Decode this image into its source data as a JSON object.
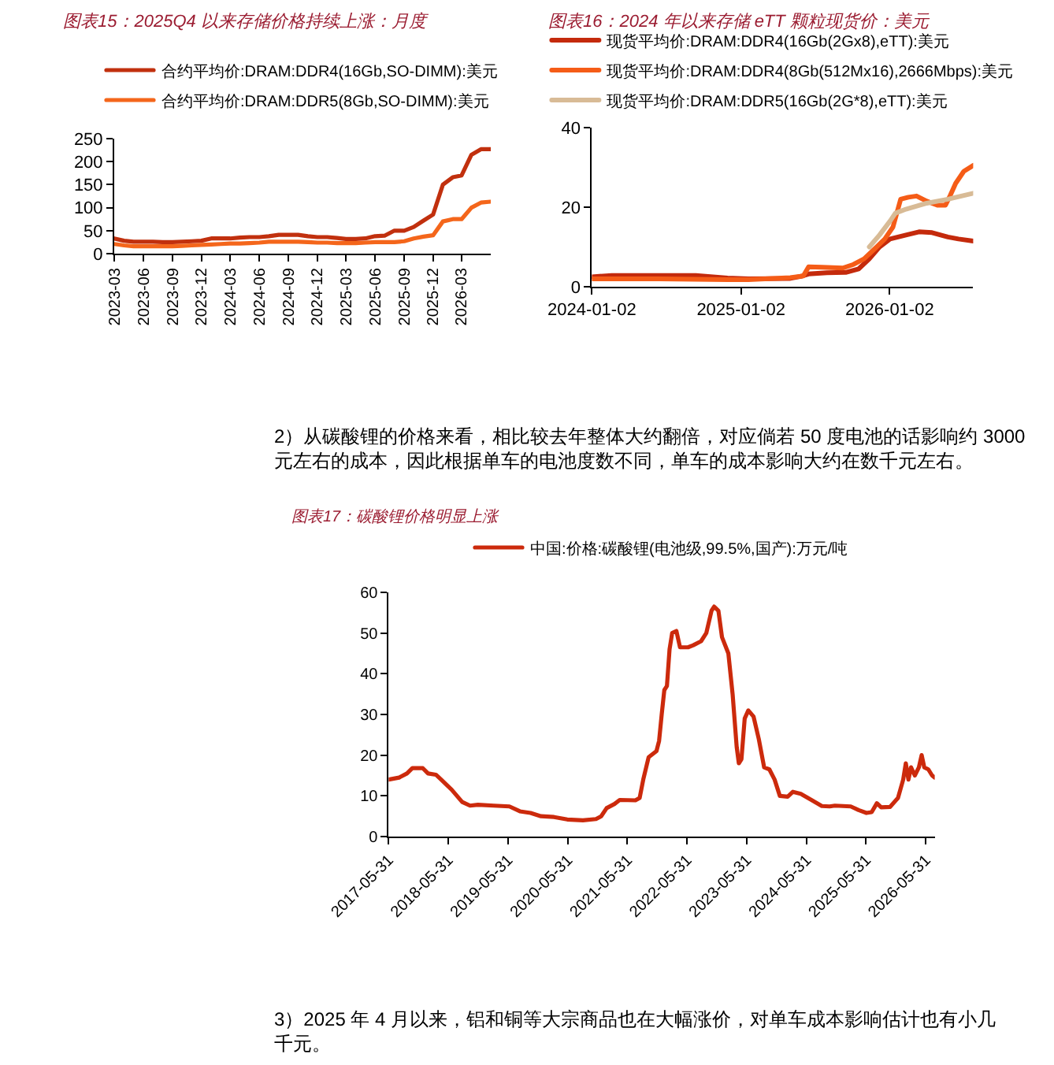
{
  "chart_data": [
    {
      "type": "line",
      "title": "图表15：2025Q4 以来存储价格持续上涨：月度",
      "legend": "top",
      "x": [
        "2023-03",
        "2023-04",
        "2023-05",
        "2023-06",
        "2023-07",
        "2023-08",
        "2023-09",
        "2023-10",
        "2023-11",
        "2023-12",
        "2024-01",
        "2024-02",
        "2024-03",
        "2024-04",
        "2024-05",
        "2024-06",
        "2024-07",
        "2024-08",
        "2024-09",
        "2024-10",
        "2024-11",
        "2024-12",
        "2025-01",
        "2025-02",
        "2025-03",
        "2025-04",
        "2025-05",
        "2025-06",
        "2025-07",
        "2025-08",
        "2025-09",
        "2025-10",
        "2025-11",
        "2025-12",
        "2026-01",
        "2026-02",
        "2026-03",
        "2026-04",
        "2026-05",
        "2026-06"
      ],
      "series": [
        {
          "name": "合约平均价:DRAM:DDR4(16Gb,SO-DIMM):美元",
          "color": "#c1300e",
          "values": [
            33,
            28,
            26,
            26,
            26,
            25,
            25,
            26,
            27,
            28,
            33,
            33,
            33,
            35,
            36,
            36,
            38,
            41,
            41,
            41,
            38,
            36,
            36,
            34,
            32,
            32,
            33,
            38,
            39,
            50,
            50,
            58,
            72,
            85,
            150,
            166,
            170,
            215,
            227,
            227
          ]
        },
        {
          "name": "合约平均价:DRAM:DDR5(8Gb,SO-DIMM):美元",
          "color": "#f4661b",
          "values": [
            21,
            18,
            16,
            16,
            16,
            16,
            16,
            17,
            18,
            19,
            20,
            21,
            22,
            22,
            23,
            24,
            26,
            26,
            26,
            26,
            25,
            24,
            24,
            23,
            23,
            23,
            24,
            25,
            25,
            25,
            27,
            33,
            37,
            40,
            70,
            75,
            75,
            100,
            111,
            113
          ]
        }
      ],
      "xlim": [
        "2023-03",
        "2026-06"
      ],
      "xticks": [
        "2023-03",
        "2023-06",
        "2023-09",
        "2023-12",
        "2024-03",
        "2024-06",
        "2024-09",
        "2024-12",
        "2025-03",
        "2025-06",
        "2025-09",
        "2025-12",
        "2026-03"
      ],
      "ylim": [
        0,
        250
      ],
      "yticks": [
        0,
        50,
        100,
        150,
        200,
        250
      ]
    },
    {
      "type": "line",
      "title": "图表16：2024 年以来存储 eTT 颗粒现货价：美元",
      "legend": "top",
      "series": [
        {
          "name": "现货平均价:DRAM:DDR4(16Gb(2Gx8),eTT):美元",
          "color": "#c42a0c",
          "x": [
            "2024-01-02",
            "2024-02-20",
            "2024-09-13",
            "2024-11-30",
            "2025-01-20",
            "2025-05-03",
            "2025-05-29",
            "2025-06-17",
            "2025-08-01",
            "2025-09-16",
            "2025-10-18",
            "2025-11-13",
            "2025-12-08",
            "2026-01-03",
            "2026-02-11",
            "2026-03-15",
            "2026-04-16",
            "2026-05-25",
            "2026-06-20",
            "2026-07-26"
          ],
          "values": [
            2.5,
            2.8,
            2.8,
            2.2,
            2.0,
            2.1,
            2.6,
            3.2,
            3.5,
            3.6,
            4.5,
            7.0,
            10,
            12,
            13,
            13.8,
            13.6,
            12.5,
            12,
            11.5
          ]
        },
        {
          "name": "现货平均价:DRAM:DDR4(8Gb(512Mx16),2666Mbps):美元",
          "color": "#f55c17",
          "x": [
            "2024-01-02",
            "2024-06-15",
            "2024-11-30",
            "2025-01-20",
            "2025-05-03",
            "2025-06-04",
            "2025-06-17",
            "2025-07-20",
            "2025-09-09",
            "2025-10-05",
            "2025-10-31",
            "2025-11-26",
            "2025-12-21",
            "2026-01-10",
            "2026-01-29",
            "2026-02-17",
            "2026-03-09",
            "2026-04-03",
            "2026-04-29",
            "2026-05-19",
            "2026-05-31",
            "2026-06-13",
            "2026-07-03",
            "2026-07-26"
          ],
          "values": [
            2.0,
            2.0,
            1.8,
            1.8,
            2.3,
            2.7,
            5.0,
            4.9,
            4.7,
            5.6,
            7,
            9.5,
            12,
            15,
            22,
            22.5,
            22.8,
            21.5,
            20.5,
            20.5,
            23,
            26,
            29,
            30.5
          ]
        },
        {
          "name": "现货平均价:DRAM:DDR5(16Gb(2G*8),eTT):美元",
          "color": "#d8bb96",
          "x": [
            "2025-11-13",
            "2025-12-08",
            "2026-01-03",
            "2026-01-16",
            "2026-02-11",
            "2026-04-03",
            "2026-05-25",
            "2026-07-26"
          ],
          "values": [
            10,
            13,
            16.5,
            18.5,
            19.5,
            21,
            22,
            23.5
          ]
        }
      ],
      "xlim": [
        "2024-01-02",
        "2026-07-26"
      ],
      "xticks": [
        "2024-01-02",
        "2025-01-02",
        "2026-01-02"
      ],
      "ylim": [
        0,
        40
      ],
      "yticks": [
        0,
        20,
        40
      ]
    },
    {
      "type": "other",
      "annotations": [
        "2）从碳酸锂的价格来看，相比较去年整体大约翻倍，对应倘若 50 度电池的话影响约 3000元左右的成本，因此根据单车的电池度数不同，单车的成本影响大约在数千元左右。"
      ]
    },
    {
      "type": "line",
      "title": "图表17：碳酸锂价格明显上涨",
      "legend": "top",
      "series": [
        {
          "name": "中国:价格:碳酸锂(电池级,99.5%,国产):万元/吨",
          "color": "#cc2a0c",
          "x": [
            "2017-05-31",
            "2017-08-03",
            "2017-09-20",
            "2017-10-23",
            "2017-12-26",
            "2018-01-27",
            "2018-03-16",
            "2018-04-17",
            "2018-06-21",
            "2018-08-24",
            "2018-10-11",
            "2018-11-28",
            "2019-03-05",
            "2019-06-09",
            "2019-08-12",
            "2019-10-16",
            "2019-12-19",
            "2020-03-08",
            "2020-05-28",
            "2020-09-01",
            "2020-11-20",
            "2020-12-22",
            "2021-01-24",
            "2021-03-13",
            "2021-04-14",
            "2021-07-19",
            "2021-08-14",
            "2021-09-05",
            "2021-10-08",
            "2021-11-25",
            "2021-12-11",
            "2021-12-27",
            "2022-01-12",
            "2022-01-28",
            "2022-02-13",
            "2022-03-01",
            "2022-03-27",
            "2022-04-18",
            "2022-06-06",
            "2022-07-08",
            "2022-08-25",
            "2022-09-26",
            "2022-10-28",
            "2022-11-13",
            "2022-12-09",
            "2022-12-31",
            "2023-02-08",
            "2023-03-06",
            "2023-03-31",
            "2023-04-13",
            "2023-04-29",
            "2023-05-19",
            "2023-06-10",
            "2023-07-12",
            "2023-08-13",
            "2023-09-15",
            "2023-10-17",
            "2023-11-18",
            "2023-12-20",
            "2024-02-06",
            "2024-03-09",
            "2024-04-26",
            "2024-06-30",
            "2024-09-02",
            "2024-10-20",
            "2024-11-21",
            "2025-02-26",
            "2025-04-15",
            "2025-06-02",
            "2025-07-04",
            "2025-08-05",
            "2025-08-31",
            "2025-10-25",
            "2025-12-12",
            "2026-01-13",
            "2026-01-29",
            "2026-02-14",
            "2026-03-02",
            "2026-03-25",
            "2026-04-19",
            "2026-05-06",
            "2026-05-22",
            "2026-06-16",
            "2026-07-09",
            "2026-07-25"
          ],
          "values": [
            14,
            14.5,
            15.5,
            16.8,
            16.8,
            15.5,
            15.2,
            14,
            11.5,
            8.5,
            7.6,
            7.8,
            7.6,
            7.4,
            6.2,
            5.8,
            5.0,
            4.8,
            4.2,
            4.0,
            4.3,
            5.0,
            7.0,
            8.0,
            9.0,
            8.9,
            9.5,
            14,
            19.5,
            21,
            23.5,
            30,
            36,
            37,
            46,
            50,
            50.5,
            46.5,
            46.5,
            47,
            48,
            50,
            55.5,
            56.5,
            55.5,
            49,
            45,
            35,
            22,
            18,
            19,
            29,
            31,
            29.5,
            24,
            17,
            16.5,
            14,
            10,
            9.8,
            11,
            10.5,
            9,
            7.5,
            7.4,
            7.6,
            7.4,
            6.5,
            5.8,
            6.0,
            8.2,
            7.2,
            7.3,
            9.5,
            14,
            18,
            14,
            17,
            15,
            17,
            20,
            17,
            16.5,
            15,
            14.5
          ]
        }
      ],
      "xlim": [
        "2017-05-31",
        "2026-07-25"
      ],
      "xticks": [
        "2017-05-31",
        "2018-05-31",
        "2019-05-31",
        "2020-05-31",
        "2021-05-31",
        "2022-05-31",
        "2023-05-31",
        "2024-05-31",
        "2025-05-31",
        "2026-05-31"
      ],
      "ylim": [
        0,
        60
      ],
      "yticks": [
        0,
        10,
        20,
        30,
        40,
        50,
        60
      ]
    },
    {
      "type": "other",
      "annotations": [
        "3）2025 年 4 月以来，铝和铜等大宗商品也在大幅涨价，对单车成本影响估计也有小几千元。"
      ]
    }
  ]
}
